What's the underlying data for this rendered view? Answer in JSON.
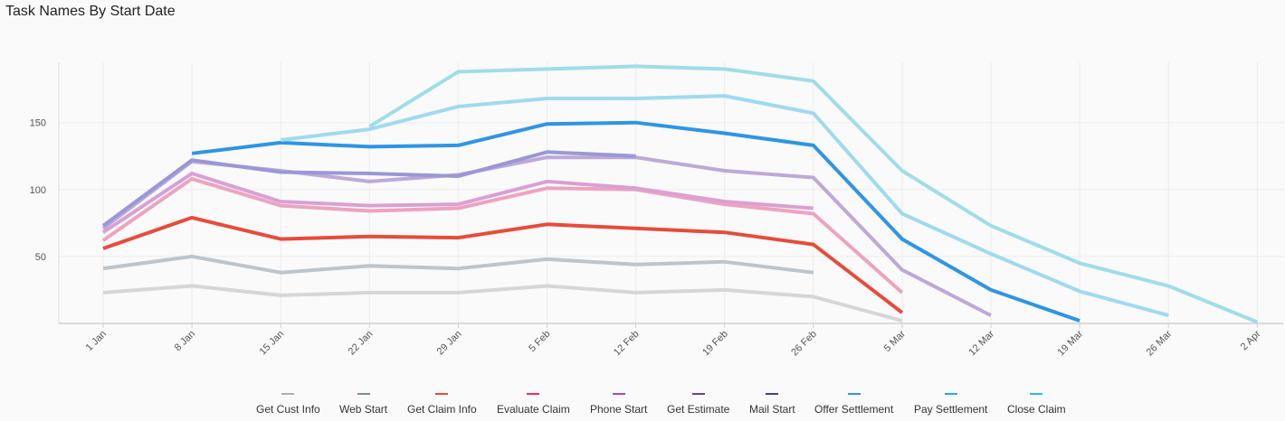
{
  "title": "Task Names By Start Date",
  "chart_data": {
    "type": "line",
    "title": "Task Names By Start Date",
    "xlabel": "",
    "ylabel": "",
    "x": [
      "1 Jan",
      "8 Jan",
      "15 Jan",
      "22 Jan",
      "29 Jan",
      "5 Feb",
      "12 Feb",
      "19 Feb",
      "26 Feb",
      "5 Mar",
      "12 Mar",
      "19 Mar",
      "26 Mar",
      "2 Apr"
    ],
    "y_ticks": [
      50,
      100,
      150
    ],
    "ylim": [
      0,
      195
    ],
    "grid": true,
    "legend_position": "bottom",
    "series": [
      {
        "name": "Get Cust Info",
        "color": "#d6d6d6",
        "legend_color": "#b0b0b0",
        "values": [
          23,
          28,
          21,
          23,
          23,
          28,
          23,
          25,
          20,
          2,
          null,
          null,
          null,
          null
        ]
      },
      {
        "name": "Web Start",
        "color": "#bcc5cc",
        "legend_color": "#7f8c93",
        "values": [
          41,
          50,
          38,
          43,
          41,
          48,
          44,
          46,
          38,
          null,
          null,
          null,
          null,
          null
        ]
      },
      {
        "name": "Get Claim Info",
        "color": "#e64c3c",
        "legend_color": "#e64c3c",
        "values": [
          56,
          79,
          63,
          65,
          64,
          74,
          71,
          68,
          59,
          8,
          null,
          null,
          null,
          null
        ]
      },
      {
        "name": "Evaluate Claim",
        "color": "#eda3bf",
        "legend_color": "#e0336b",
        "values": [
          62,
          108,
          88,
          84,
          86,
          101,
          100,
          89,
          82,
          23,
          null,
          null,
          null,
          null
        ]
      },
      {
        "name": "Phone Start",
        "color": "#d9a0d3",
        "legend_color": "#a94ea5",
        "values": [
          68,
          112,
          91,
          88,
          89,
          106,
          101,
          91,
          86,
          null,
          null,
          null,
          null,
          null
        ]
      },
      {
        "name": "Get Estimate",
        "color": "#bca9d9",
        "legend_color": "#6c3ea0",
        "values": [
          71,
          121,
          114,
          106,
          111,
          124,
          124,
          114,
          109,
          40,
          6,
          null,
          null,
          null
        ]
      },
      {
        "name": "Mail Start",
        "color": "#9b97d6",
        "legend_color": "#3f3c9f",
        "values": [
          73,
          122,
          113,
          112,
          110,
          128,
          125,
          null,
          null,
          null,
          null,
          null,
          null,
          null
        ]
      },
      {
        "name": "Offer Settlement",
        "color": "#2f95e3",
        "legend_color": "#2f95e3",
        "values": [
          null,
          127,
          135,
          132,
          133,
          149,
          150,
          142,
          133,
          63,
          25,
          2,
          null,
          null
        ]
      },
      {
        "name": "Pay Settlement",
        "color": "#9fdaf0",
        "legend_color": "#29a8e8",
        "values": [
          null,
          null,
          137,
          145,
          162,
          168,
          168,
          170,
          157,
          82,
          52,
          24,
          6,
          null
        ]
      },
      {
        "name": "Close Claim",
        "color": "#9fdde9",
        "legend_color": "#2fb8de",
        "values": [
          null,
          null,
          null,
          147,
          188,
          190,
          192,
          190,
          181,
          114,
          73,
          45,
          28,
          1
        ]
      }
    ]
  }
}
